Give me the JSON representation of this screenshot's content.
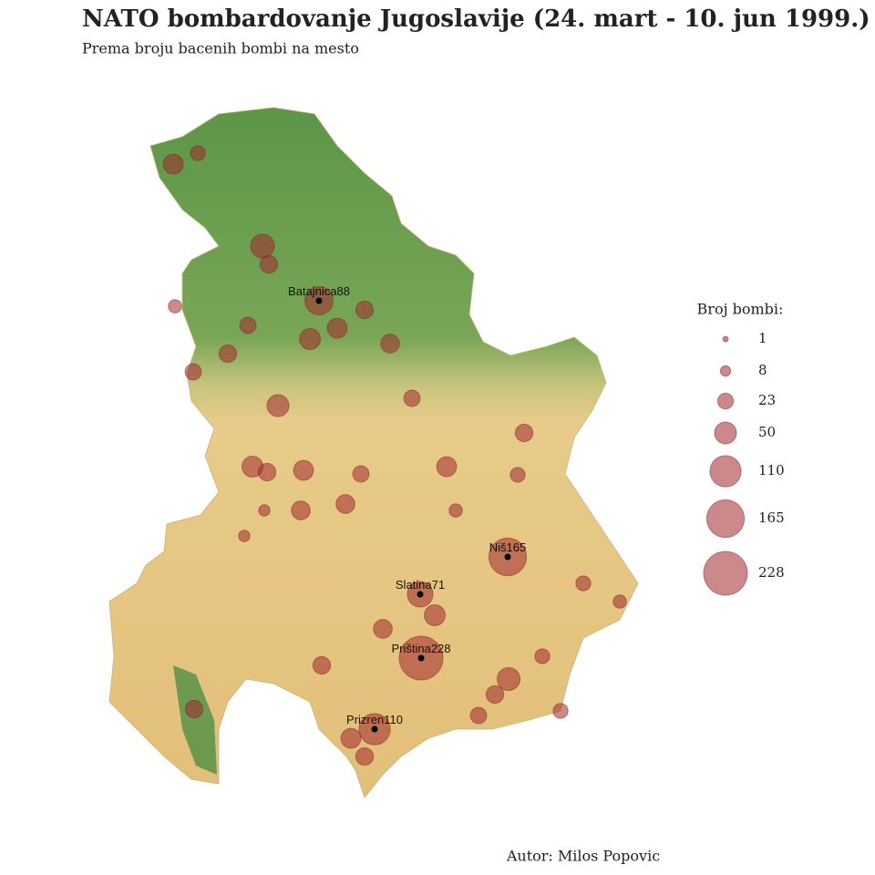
{
  "header": {
    "title": "NATO bombardovanje Jugoslavije (24. mart - 10. jun 1999.)",
    "subtitle": "Prema broju bacenih bombi na mesto"
  },
  "legend": {
    "title": "Broj bombi:",
    "items": [
      1,
      8,
      23,
      50,
      110,
      165,
      228
    ]
  },
  "places": [
    {
      "name": "Batajnica",
      "value": 88
    },
    {
      "name": "Niš",
      "value": 165
    },
    {
      "name": "Slatina",
      "value": 71
    },
    {
      "name": "Priština",
      "value": 228
    },
    {
      "name": "Prizren",
      "value": 110
    }
  ],
  "other_sites": [
    40,
    20,
    60,
    30,
    25,
    30,
    25,
    50,
    45,
    40,
    30,
    35,
    25,
    45,
    30,
    40,
    35,
    25,
    35,
    40,
    30,
    20,
    55,
    30,
    20,
    45,
    35,
    30,
    40,
    30,
    25,
    20,
    30,
    15,
    15,
    20,
    10,
    10,
    15
  ],
  "footer": {
    "author": "Autor: Milos Popovic"
  }
}
